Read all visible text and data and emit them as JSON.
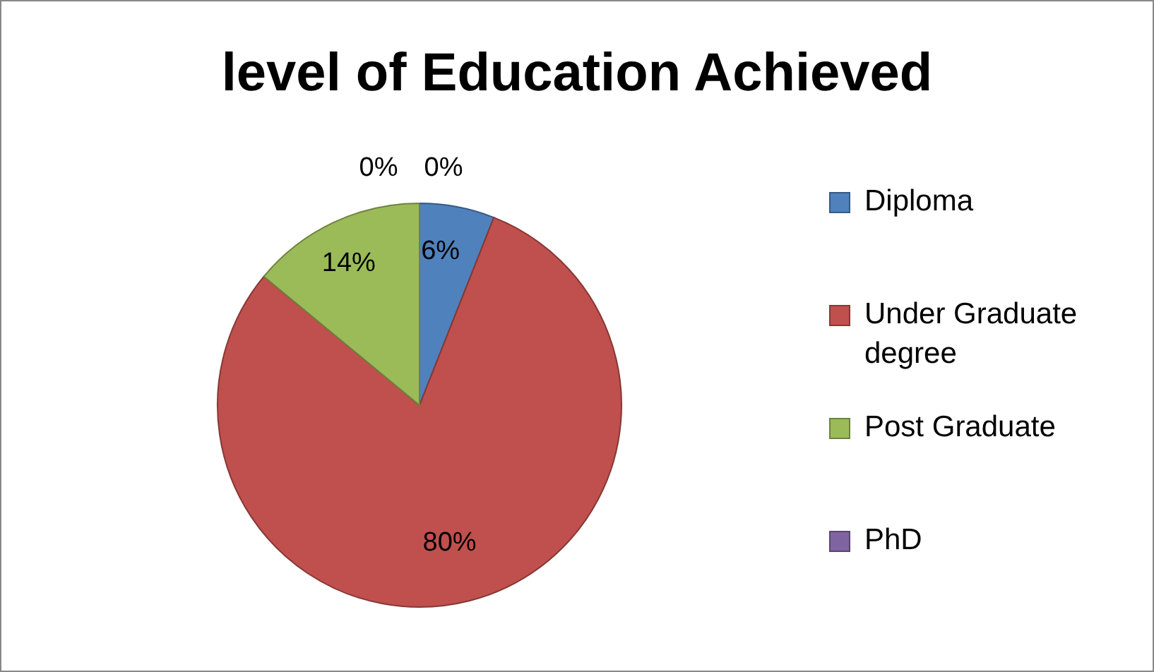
{
  "chart_data": {
    "type": "pie",
    "title": "level of Education Achieved",
    "categories": [
      "Diploma",
      "Under Graduate degree",
      "Post Graduate",
      "PhD",
      null
    ],
    "values": [
      6,
      80,
      14,
      0,
      0
    ],
    "value_labels": [
      "6%",
      "80%",
      "14%",
      "0%",
      "0%"
    ],
    "colors": [
      "#4f81bd",
      "#c0504d",
      "#9bbb59",
      "#8064a2",
      "#4bacc6"
    ],
    "legend": "right"
  }
}
